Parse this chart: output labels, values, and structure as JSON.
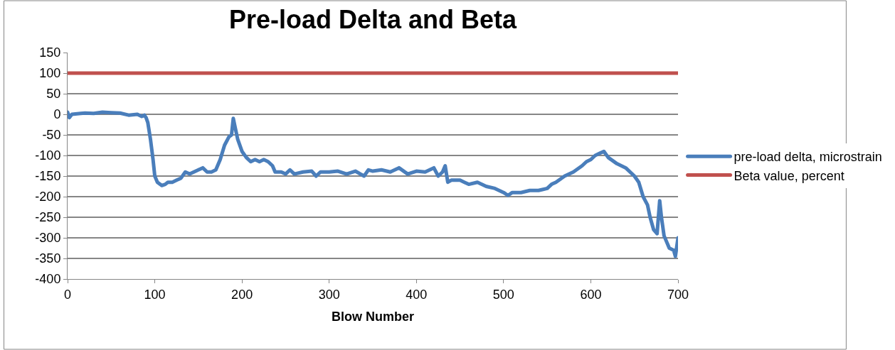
{
  "chart_data": {
    "type": "line",
    "title": "Pre-load Delta and Beta",
    "xlabel": "Blow Number",
    "xlim": [
      0,
      700
    ],
    "xticks": [
      0,
      100,
      200,
      300,
      400,
      500,
      600,
      700
    ],
    "ylim": [
      -400,
      150
    ],
    "yticks": [
      -400,
      -350,
      -300,
      -250,
      -200,
      -150,
      -100,
      -50,
      0,
      50,
      100,
      150
    ],
    "grid": "y",
    "legend": "right",
    "line_style": "solid",
    "marker": "none",
    "series": [
      {
        "name": "pre-load delta, microstrain",
        "color": "#4a7ebb",
        "x": [
          0,
          2,
          5,
          15,
          20,
          30,
          40,
          50,
          60,
          70,
          80,
          85,
          88,
          90,
          92,
          95,
          98,
          100,
          103,
          108,
          112,
          115,
          120,
          125,
          130,
          135,
          140,
          150,
          155,
          160,
          165,
          170,
          175,
          180,
          185,
          188,
          190,
          192,
          195,
          200,
          205,
          210,
          215,
          220,
          225,
          230,
          235,
          238,
          245,
          250,
          255,
          260,
          270,
          280,
          285,
          290,
          300,
          310,
          320,
          330,
          340,
          345,
          350,
          360,
          370,
          380,
          390,
          400,
          410,
          420,
          425,
          430,
          433,
          436,
          440,
          450,
          455,
          460,
          470,
          480,
          490,
          500,
          505,
          510,
          520,
          530,
          540,
          550,
          555,
          560,
          570,
          580,
          590,
          595,
          600,
          605,
          610,
          615,
          620,
          630,
          640,
          650,
          655,
          660,
          665,
          668,
          672,
          676,
          679,
          681,
          684,
          690,
          695,
          697,
          700
        ],
        "values": [
          5,
          -8,
          0,
          2,
          3,
          2,
          5,
          4,
          3,
          -2,
          0,
          -5,
          -2,
          -8,
          -20,
          -60,
          -110,
          -150,
          -165,
          -173,
          -170,
          -165,
          -165,
          -160,
          -155,
          -140,
          -145,
          -135,
          -130,
          -140,
          -140,
          -135,
          -110,
          -75,
          -55,
          -50,
          -10,
          -30,
          -60,
          -90,
          -105,
          -115,
          -110,
          -115,
          -110,
          -115,
          -125,
          -140,
          -140,
          -145,
          -135,
          -145,
          -140,
          -138,
          -150,
          -140,
          -140,
          -138,
          -145,
          -138,
          -150,
          -135,
          -138,
          -135,
          -140,
          -130,
          -145,
          -138,
          -140,
          -130,
          -150,
          -140,
          -125,
          -165,
          -160,
          -160,
          -165,
          -170,
          -165,
          -175,
          -180,
          -190,
          -197,
          -190,
          -190,
          -185,
          -185,
          -180,
          -170,
          -165,
          -150,
          -140,
          -125,
          -115,
          -110,
          -100,
          -95,
          -90,
          -105,
          -120,
          -130,
          -150,
          -165,
          -200,
          -220,
          -250,
          -280,
          -290,
          -210,
          -250,
          -295,
          -325,
          -330,
          -345,
          -300
        ]
      },
      {
        "name": "Beta value, percent",
        "color": "#c0504d",
        "x": [
          0,
          700
        ],
        "values": [
          100,
          100
        ]
      }
    ]
  }
}
